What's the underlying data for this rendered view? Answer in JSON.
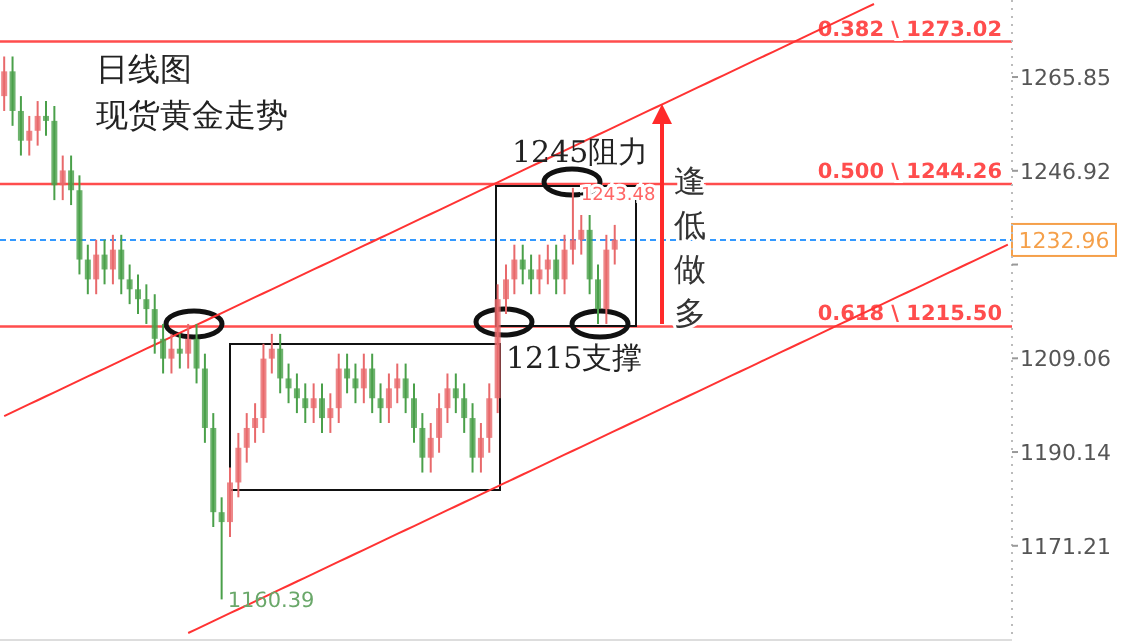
{
  "chart_data": {
    "type": "candlestick",
    "title": "日线图",
    "subtitle": "现货黄金走势",
    "categories": [
      null,
      null,
      null,
      null,
      null,
      null,
      null,
      null,
      null,
      null,
      null,
      null,
      null,
      null,
      null,
      null,
      null,
      null,
      null,
      null,
      null,
      null,
      null,
      null,
      null,
      null,
      null,
      null,
      null,
      null,
      null,
      null,
      null,
      null,
      null,
      null,
      null,
      null,
      null,
      null,
      null,
      null,
      null,
      null,
      null,
      null,
      null,
      null,
      null,
      null,
      null,
      null,
      null,
      null,
      null,
      null,
      null,
      null,
      null,
      null,
      null,
      null,
      null,
      null,
      null,
      null,
      null,
      null,
      null,
      null,
      null,
      null,
      null,
      null,
      null,
      null,
      null,
      null,
      null,
      null,
      null,
      null,
      null,
      null,
      null,
      null,
      null,
      null,
      null,
      null,
      null,
      null,
      null,
      null,
      null,
      null,
      null,
      null,
      null,
      null,
      null,
      null,
      null,
      null,
      null,
      null,
      null,
      null,
      null,
      null,
      null,
      null,
      null,
      null,
      null,
      null,
      null,
      null,
      null,
      null,
      null
    ],
    "ohlc": [
      [
        1262,
        1270,
        1259,
        1267
      ],
      [
        1267,
        1270,
        1256,
        1259
      ],
      [
        1259,
        1262,
        1250,
        1253
      ],
      [
        1253,
        1258,
        1250,
        1255
      ],
      [
        1255,
        1261,
        1252,
        1258
      ],
      [
        1258,
        1261,
        1254,
        1257
      ],
      [
        1257,
        1260,
        1241,
        1244
      ],
      [
        1244,
        1250,
        1241,
        1247
      ],
      [
        1247,
        1250,
        1240,
        1243
      ],
      [
        1243,
        1246,
        1226,
        1229
      ],
      [
        1229,
        1232,
        1222,
        1225
      ],
      [
        1225,
        1233,
        1222,
        1230
      ],
      [
        1230,
        1233,
        1224,
        1227
      ],
      [
        1227,
        1234,
        1224,
        1231
      ],
      [
        1231,
        1234,
        1222,
        1225
      ],
      [
        1225,
        1228,
        1220,
        1223
      ],
      [
        1223,
        1226,
        1218,
        1221
      ],
      [
        1221,
        1224,
        1216,
        1219
      ],
      [
        1219,
        1222,
        1210,
        1213
      ],
      [
        1213,
        1216,
        1206,
        1209
      ],
      [
        1209,
        1214,
        1206,
        1211
      ],
      [
        1211,
        1214,
        1207,
        1210
      ],
      [
        1210,
        1216,
        1207,
        1213
      ],
      [
        1213,
        1216,
        1204,
        1207
      ],
      [
        1207,
        1210,
        1192,
        1195
      ],
      [
        1195,
        1198,
        1175,
        1178
      ],
      [
        1178,
        1181,
        1160.39,
        1176
      ],
      [
        1176,
        1187,
        1173,
        1184
      ],
      [
        1184,
        1194,
        1181,
        1191
      ],
      [
        1191,
        1198,
        1188,
        1195
      ],
      [
        1195,
        1200,
        1192,
        1197
      ],
      [
        1197,
        1212,
        1194,
        1209
      ],
      [
        1209,
        1214,
        1206,
        1211
      ],
      [
        1211,
        1214,
        1202,
        1205
      ],
      [
        1205,
        1208,
        1200,
        1203
      ],
      [
        1203,
        1206,
        1198,
        1201
      ],
      [
        1201,
        1204,
        1196,
        1199
      ],
      [
        1199,
        1204,
        1196,
        1201
      ],
      [
        1201,
        1204,
        1194,
        1197
      ],
      [
        1197,
        1202,
        1194,
        1199
      ],
      [
        1199,
        1210,
        1196,
        1207
      ],
      [
        1207,
        1210,
        1202,
        1205
      ],
      [
        1205,
        1208,
        1200,
        1203
      ],
      [
        1203,
        1210,
        1200,
        1207
      ],
      [
        1207,
        1210,
        1198,
        1201
      ],
      [
        1201,
        1204,
        1196,
        1199
      ],
      [
        1199,
        1206,
        1196,
        1203
      ],
      [
        1203,
        1208,
        1200,
        1205
      ],
      [
        1205,
        1208,
        1198,
        1201
      ],
      [
        1201,
        1204,
        1192,
        1195
      ],
      [
        1195,
        1198,
        1186,
        1189
      ],
      [
        1189,
        1196,
        1186,
        1193
      ],
      [
        1193,
        1202,
        1190,
        1199
      ],
      [
        1199,
        1206,
        1196,
        1203
      ],
      [
        1203,
        1206,
        1198,
        1201
      ],
      [
        1201,
        1204,
        1194,
        1197
      ],
      [
        1197,
        1200,
        1186,
        1189
      ],
      [
        1189,
        1196,
        1186,
        1193
      ],
      [
        1193,
        1204,
        1190,
        1201
      ],
      [
        1201,
        1224,
        1198,
        1221
      ],
      [
        1221,
        1228,
        1218,
        1225
      ],
      [
        1225,
        1232,
        1222,
        1229
      ],
      [
        1229,
        1232,
        1224,
        1227
      ],
      [
        1227,
        1230,
        1222,
        1225
      ],
      [
        1225,
        1230,
        1222,
        1227
      ],
      [
        1227,
        1232,
        1224,
        1229
      ],
      [
        1229,
        1232,
        1222,
        1225
      ],
      [
        1225,
        1234,
        1222,
        1231
      ],
      [
        1231,
        1243.48,
        1228,
        1233
      ],
      [
        1233,
        1238,
        1230,
        1235
      ],
      [
        1235,
        1238,
        1222,
        1225
      ],
      [
        1225,
        1228,
        1216,
        1219
      ],
      [
        1219,
        1234,
        1216,
        1231
      ],
      [
        1231,
        1236,
        1228,
        1233
      ],
      null,
      null,
      null,
      null,
      null,
      null,
      null,
      null,
      null,
      null,
      null,
      null,
      null,
      null,
      null,
      null,
      null,
      null,
      null,
      null,
      null,
      null,
      null,
      null,
      null,
      null,
      null,
      null,
      null,
      null,
      null,
      null,
      null,
      null,
      null,
      null,
      null,
      null,
      null,
      null,
      null,
      null,
      null,
      null,
      null,
      null,
      null
    ],
    "colors": [
      "#e8696b",
      "#4aa04a",
      "#4aa04a",
      "#e8696b",
      "#e8696b",
      "#4aa04a",
      "#4aa04a",
      "#e8696b",
      "#4aa04a",
      "#4aa04a",
      "#4aa04a",
      "#e8696b",
      "#4aa04a",
      "#e8696b",
      "#4aa04a",
      "#4aa04a",
      "#4aa04a",
      "#4aa04a",
      "#4aa04a",
      "#4aa04a",
      "#e8696b",
      "#4aa04a",
      "#e8696b",
      "#4aa04a",
      "#4aa04a",
      "#4aa04a",
      "#4aa04a",
      "#e8696b",
      "#e8696b",
      "#e8696b",
      "#e8696b",
      "#e8696b",
      "#e8696b",
      "#4aa04a",
      "#4aa04a",
      "#4aa04a",
      "#4aa04a",
      "#e8696b",
      "#4aa04a",
      "#e8696b",
      "#e8696b",
      "#4aa04a",
      "#4aa04a",
      "#e8696b",
      "#4aa04a",
      "#4aa04a",
      "#e8696b",
      "#e8696b",
      "#4aa04a",
      "#4aa04a",
      "#4aa04a",
      "#e8696b",
      "#e8696b",
      "#e8696b",
      "#4aa04a",
      "#4aa04a",
      "#4aa04a",
      "#e8696b",
      "#e8696b",
      "#e8696b",
      "#e8696b",
      "#e8696b",
      "#4aa04a",
      "#4aa04a",
      "#e8696b",
      "#e8696b",
      "#4aa04a",
      "#e8696b",
      "#e8696b",
      "#e8696b",
      "#4aa04a",
      "#4aa04a",
      "#e8696b",
      "#e8696b",
      null,
      null,
      null,
      null,
      null,
      null,
      null,
      null,
      null,
      null,
      null,
      null,
      null,
      null,
      null,
      null,
      null,
      null,
      null,
      null,
      null,
      null,
      null,
      null,
      null,
      null,
      null,
      null,
      null,
      null,
      null,
      null,
      null,
      null,
      null,
      null,
      null,
      null,
      null,
      null,
      null,
      null,
      null,
      null,
      null,
      null,
      null
    ],
    "series": [
      {
        "type": "line",
        "color": "#ff3333",
        "values": [
          1197.4,
          1198.2,
          1199,
          1199.8,
          1200.6,
          1201.4,
          1202.2,
          1203,
          1203.8,
          1204.6,
          1205.4,
          1206.2,
          1207,
          1207.8,
          1208.6,
          1209.4,
          1210.2,
          1211,
          1211.8,
          1212.6,
          1213.4,
          1214.2,
          1215,
          1215.8,
          1216.6,
          1217.4,
          1218.2,
          1219,
          1219.8,
          1220.6,
          1221.4,
          1222.2,
          1223,
          1223.8,
          1224.6,
          1225.4,
          1226.2,
          1227,
          1227.8,
          1228.6,
          1229.4,
          1230.2,
          1231,
          1231.8,
          1232.6,
          1233.4,
          1234.2,
          1235,
          1235.8,
          1236.6,
          1237.4,
          1238.2,
          1239,
          1239.8,
          1240.6,
          1241.4,
          1242.2,
          1243,
          1243.8,
          1244.6,
          1245.4,
          1246.2,
          1247,
          1247.8,
          1248.6,
          1249.4,
          1250.2,
          1251,
          1251.8,
          1252.6,
          1253.4,
          1254.2,
          1255,
          1255.8,
          1256.6,
          1257.4,
          1258.2,
          1259,
          1259.8,
          1260.6,
          1261.4,
          1262.2,
          1263,
          1263.8,
          1264.6,
          1265.4,
          1266.2,
          1267,
          1267.8,
          1268.6,
          1269.4,
          1270.2,
          1271,
          1271.8,
          1272.6,
          1273.4,
          1274.2,
          1275,
          1275.8,
          1276.6,
          1277.4,
          1278.2,
          1279,
          1279.8,
          1280.6,
          null,
          null,
          null,
          null,
          null,
          null,
          null,
          null,
          null,
          null,
          null,
          null,
          null,
          null,
          null,
          null
        ]
      },
      {
        "type": "line",
        "color": "#ff3333",
        "values": [
          null,
          null,
          null,
          null,
          null,
          null,
          null,
          null,
          null,
          null,
          null,
          null,
          null,
          null,
          null,
          null,
          null,
          null,
          null,
          null,
          null,
          null,
          1153.6,
          1154.4,
          1155.2,
          1156,
          1156.8,
          1157.6,
          1158.4,
          1159.2,
          1160,
          1160.8,
          1161.6,
          1162.4,
          1163.2,
          1164,
          1164.8,
          1165.6,
          1166.4,
          1167.2,
          1168,
          1168.8,
          1169.6,
          1170.4,
          1171.2,
          1172,
          1172.8,
          1173.6,
          1174.4,
          1175.2,
          1176,
          1176.8,
          1177.6,
          1178.4,
          1179.2,
          1180,
          1180.8,
          1181.6,
          1182.4,
          1183.2,
          1184,
          1184.8,
          1185.6,
          1186.4,
          1187.2,
          1188,
          1188.8,
          1189.6,
          1190.4,
          1191.2,
          1192,
          1192.8,
          1193.6,
          1194.4,
          1195.2,
          1196,
          1196.8,
          1197.6,
          1198.4,
          1199.2,
          1200,
          1200.8,
          1201.6,
          1202.4,
          1203.2,
          1204,
          1204.8,
          1205.6,
          1206.4,
          1207.2,
          1208,
          1208.8,
          1209.6,
          1210.4,
          1211.2,
          1212,
          1212.8,
          1213.6,
          1214.4,
          1215.2,
          1216,
          1216.8,
          1217.6,
          1218.4,
          1219.2,
          1220,
          1220.8,
          1221.6,
          1222.4,
          1223.2,
          1224,
          1224.8,
          1225.6,
          1226.4,
          1227.2,
          1228,
          1228.8,
          1229.6,
          1230.4,
          1231.2,
          1232
        ]
      }
    ],
    "ylim": [
      1153,
      1281
    ],
    "yticks": [
      1171.21,
      1190.14,
      1209.06,
      {
        "value": 1227.99,
        "label": null
      },
      1246.92,
      1265.85
    ],
    "ref_lines": [
      {
        "axis": "y",
        "value": 1273.02,
        "label": "0.382 \\ 1273.02",
        "color": "#ff4d4d"
      },
      {
        "axis": "y",
        "value": 1244.26,
        "label": "0.500 \\ 1244.26",
        "color": "#ff4d4d"
      },
      {
        "axis": "y",
        "value": 1215.5,
        "label": "0.618 \\ 1215.50",
        "color": "#ff4d4d"
      },
      {
        "axis": "y",
        "value": 1232.96,
        "label": "1232.96",
        "color": "#3399ff",
        "line_style": "dashed"
      }
    ],
    "annotations": [
      "1245阻力",
      "1215支撑",
      "逢低做多",
      {
        "text": "1160.39",
        "y": 1160.39
      },
      {
        "text": "1243.48",
        "y": 1243.48
      }
    ]
  }
}
